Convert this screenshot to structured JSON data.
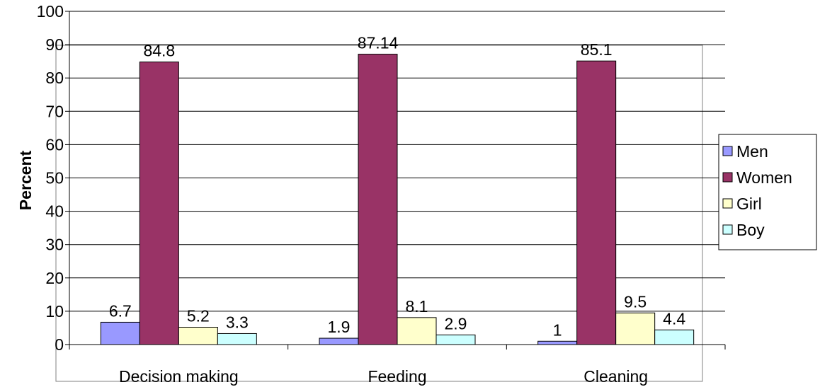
{
  "chart_data": {
    "type": "bar",
    "title": "",
    "xlabel": "",
    "ylabel": "Percent",
    "ylim": [
      0,
      100
    ],
    "yticks": [
      0,
      10,
      20,
      30,
      40,
      50,
      60,
      70,
      80,
      90,
      100
    ],
    "grid": true,
    "legend_position": "right",
    "categories": [
      "Decision making",
      "Feeding",
      "Cleaning"
    ],
    "series": [
      {
        "name": "Men",
        "color": "#9999ff",
        "values": [
          6.7,
          1.9,
          1
        ],
        "labels": [
          "6.7",
          "1.9",
          "1"
        ]
      },
      {
        "name": "Women",
        "color": "#993366",
        "values": [
          84.8,
          87.14,
          85.1
        ],
        "labels": [
          "84.8",
          "87.14",
          "85.1"
        ]
      },
      {
        "name": "Girl",
        "color": "#ffffcc",
        "values": [
          5.2,
          8.1,
          9.5
        ],
        "labels": [
          "5.2",
          "8.1",
          "9.5"
        ]
      },
      {
        "name": "Boy",
        "color": "#ccffff",
        "values": [
          3.3,
          2.9,
          4.4
        ],
        "labels": [
          "3.3",
          "2.9",
          "4.4"
        ]
      }
    ]
  }
}
